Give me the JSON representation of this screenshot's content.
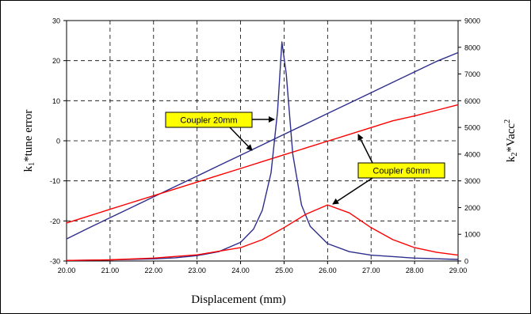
{
  "chart_data": {
    "type": "line",
    "title": "",
    "xlabel": "Displacement (mm)",
    "ylabel_left": "k1*tune error",
    "ylabel_right": "k2*Vacc2",
    "xlim": [
      20.0,
      29.0
    ],
    "ylim_left": [
      -30,
      30
    ],
    "ylim_right": [
      0,
      9000
    ],
    "x_ticks": [
      "20.00",
      "21.00",
      "22.00",
      "23.00",
      "24.00",
      "25.00",
      "26.00",
      "27.00",
      "28.00",
      "29.00"
    ],
    "y_left_ticks": [
      "-30",
      "-20",
      "-10",
      "0",
      "10",
      "20",
      "30"
    ],
    "y_right_ticks": [
      "0",
      "1000",
      "2000",
      "3000",
      "4000",
      "5000",
      "6000",
      "7000",
      "8000",
      "9000"
    ],
    "grid": true,
    "colors": {
      "coupler20": "#2e2e8c",
      "coupler60": "#ff0000",
      "callout_bg": "#ffff00"
    },
    "series": [
      {
        "axis": "left",
        "color": "#2e2e8c",
        "x": [
          20.0,
          20.5,
          21.0,
          21.5,
          22.0,
          22.5,
          23.0,
          23.5,
          24.0,
          24.5,
          25.0,
          25.5,
          26.0,
          26.5,
          27.0,
          27.5,
          28.0,
          28.5,
          29.0
        ],
        "values": [
          -24.5,
          -21.8,
          -19.2,
          -16.6,
          -14.0,
          -11.4,
          -8.8,
          -6.2,
          -3.6,
          -1.0,
          1.6,
          4.2,
          6.8,
          9.4,
          12.0,
          14.6,
          17.2,
          19.8,
          22.0
        ]
      },
      {
        "axis": "left",
        "color": "#ff0000",
        "x": [
          20.0,
          20.5,
          21.0,
          21.5,
          22.0,
          22.5,
          23.0,
          23.5,
          24.0,
          24.5,
          25.0,
          25.5,
          26.0,
          26.5,
          27.0,
          27.5,
          28.0,
          28.5,
          29.0
        ],
        "values": [
          -20.5,
          -18.8,
          -17.1,
          -15.4,
          -13.7,
          -12.0,
          -10.3,
          -8.6,
          -6.9,
          -5.2,
          -3.5,
          -1.8,
          -0.1,
          1.6,
          3.3,
          5.0,
          6.2,
          7.6,
          9.0
        ]
      },
      {
        "axis": "right",
        "color": "#2e2e8c",
        "x": [
          20.0,
          21.0,
          22.0,
          22.5,
          23.0,
          23.5,
          24.0,
          24.3,
          24.5,
          24.7,
          24.85,
          24.95,
          25.05,
          25.2,
          25.4,
          25.6,
          26.0,
          26.5,
          27.0,
          28.0,
          29.0
        ],
        "values": [
          20,
          40,
          80,
          120,
          200,
          350,
          700,
          1200,
          1900,
          3300,
          5600,
          8200,
          7000,
          4000,
          2100,
          1300,
          650,
          350,
          220,
          110,
          60
        ]
      },
      {
        "axis": "right",
        "color": "#ff0000",
        "x": [
          20.0,
          21.0,
          22.0,
          23.0,
          24.0,
          24.5,
          25.0,
          25.5,
          26.0,
          26.5,
          27.0,
          27.5,
          28.0,
          28.5,
          29.0
        ],
        "values": [
          20,
          45,
          110,
          230,
          500,
          800,
          1250,
          1750,
          2100,
          1800,
          1250,
          800,
          500,
          330,
          220
        ]
      }
    ],
    "annotations": [
      {
        "text": "Coupler 20mm"
      },
      {
        "text": "Coupler 60mm"
      }
    ]
  }
}
